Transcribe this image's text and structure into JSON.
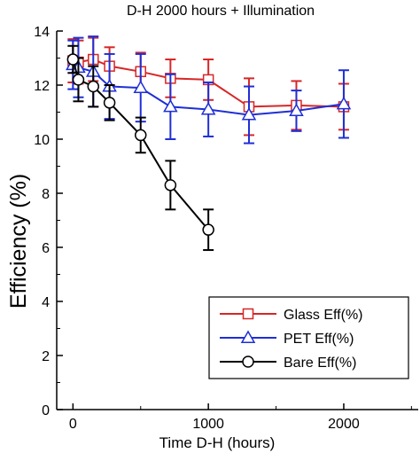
{
  "chart_data": {
    "type": "line",
    "title": "D-H 2000 hours + Illumination",
    "xlabel": "Time D-H (hours)",
    "ylabel": "Efficiency (%)",
    "xlim": [
      -120,
      2550
    ],
    "ylim": [
      0,
      14
    ],
    "x_ticks": [
      0,
      1000,
      2000
    ],
    "y_ticks": [
      0,
      2,
      4,
      6,
      8,
      10,
      12,
      14
    ],
    "grid": false,
    "legend_position": "bottom-right",
    "series": [
      {
        "name": "Glass Eff(%)",
        "color": "#d62728",
        "marker": "square",
        "x": [
          0,
          40,
          150,
          270,
          500,
          720,
          1000,
          1300,
          1650,
          2000
        ],
        "y": [
          12.9,
          12.85,
          12.95,
          12.7,
          12.5,
          12.25,
          12.2,
          11.2,
          11.25,
          11.2
        ],
        "err": [
          0.8,
          0.8,
          0.8,
          0.7,
          0.7,
          0.7,
          0.75,
          1.05,
          0.9,
          0.85
        ]
      },
      {
        "name": "PET Eff(%)",
        "color": "#1f2fd6",
        "marker": "triangle",
        "x": [
          0,
          40,
          150,
          270,
          500,
          720,
          1000,
          1300,
          1650,
          2000
        ],
        "y": [
          12.75,
          12.65,
          12.5,
          11.95,
          11.9,
          11.2,
          11.1,
          10.9,
          11.05,
          11.3
        ],
        "err": [
          0.9,
          1.1,
          1.3,
          1.2,
          1.25,
          1.2,
          1.0,
          1.05,
          0.75,
          1.25
        ]
      },
      {
        "name": "Bare Eff(%)",
        "color": "#000000",
        "marker": "circle",
        "x": [
          0,
          40,
          150,
          270,
          500,
          720,
          1000
        ],
        "y": [
          12.95,
          12.2,
          11.95,
          11.35,
          10.15,
          8.3,
          6.65
        ],
        "err": [
          0.5,
          0.8,
          0.75,
          0.65,
          0.65,
          0.9,
          0.75
        ]
      }
    ]
  }
}
